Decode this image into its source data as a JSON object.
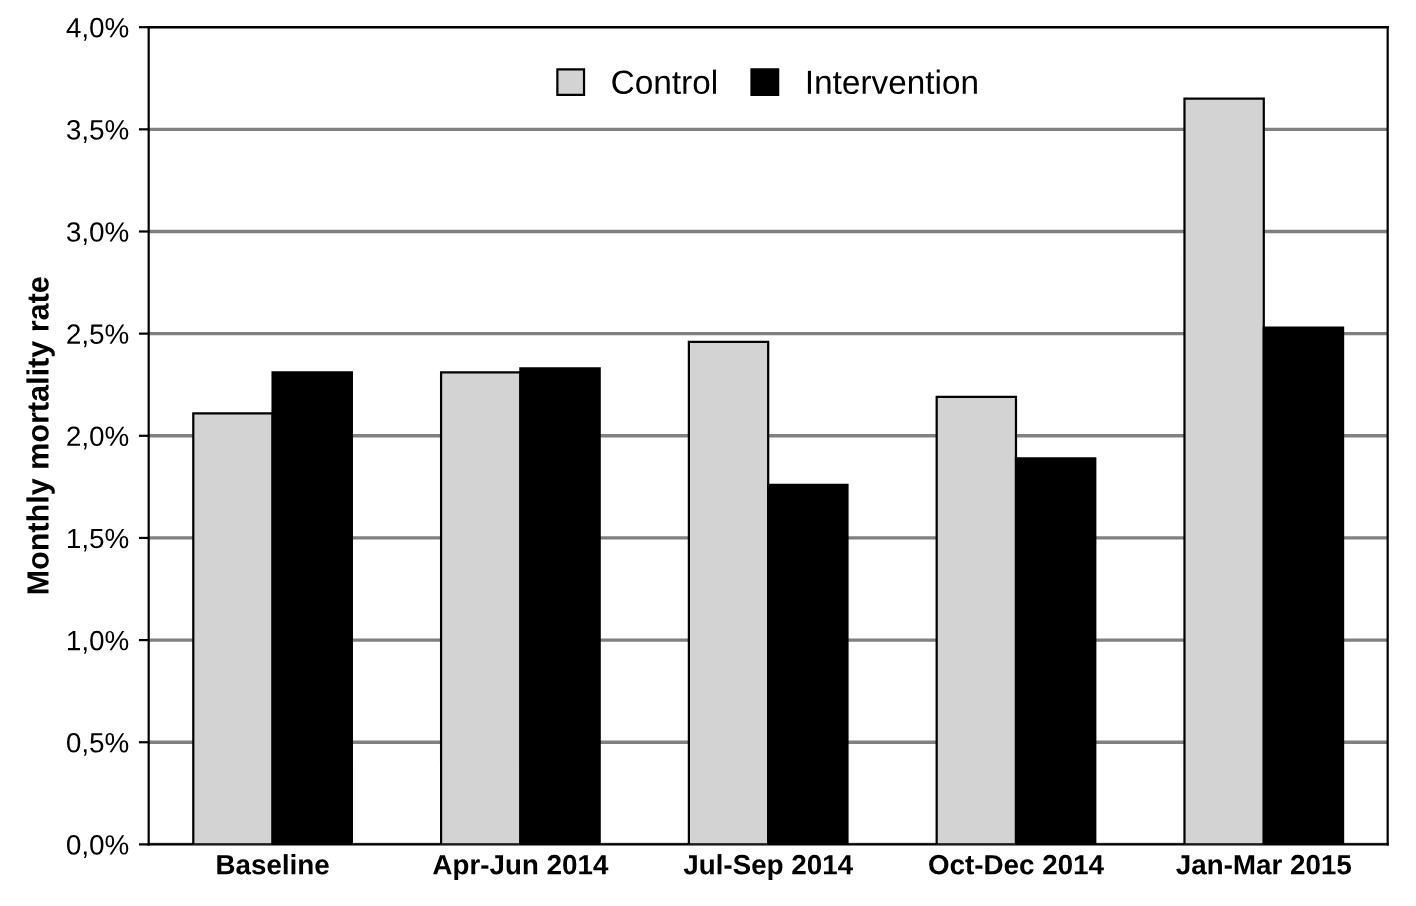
{
  "chart_data": {
    "type": "bar",
    "ylabel": "Monthly mortality rate",
    "categories": [
      "Baseline",
      "Apr-Jun 2014",
      "Jul-Sep 2014",
      "Oct-Dec 2014",
      "Jan-Mar 2015"
    ],
    "series": [
      {
        "name": "Control",
        "color": "#d3d3d3",
        "values": [
          2.11,
          2.31,
          2.46,
          2.19,
          3.65
        ]
      },
      {
        "name": "Intervention",
        "color": "#000000",
        "values": [
          2.31,
          2.33,
          1.76,
          1.89,
          2.53
        ]
      }
    ],
    "ylim": [
      0,
      4.0
    ],
    "yticks": [
      {
        "value": 0,
        "label": "0,0%"
      },
      {
        "value": 0.5,
        "label": "0,5%"
      },
      {
        "value": 1.0,
        "label": "1,0%"
      },
      {
        "value": 1.5,
        "label": "1,5%"
      },
      {
        "value": 2.0,
        "label": "2,0%"
      },
      {
        "value": 2.5,
        "label": "2,5%"
      },
      {
        "value": 3.0,
        "label": "3,0%"
      },
      {
        "value": 3.5,
        "label": "3,5%"
      },
      {
        "value": 4.0,
        "label": "4,0%"
      }
    ],
    "grid": "y",
    "legend": "top"
  }
}
